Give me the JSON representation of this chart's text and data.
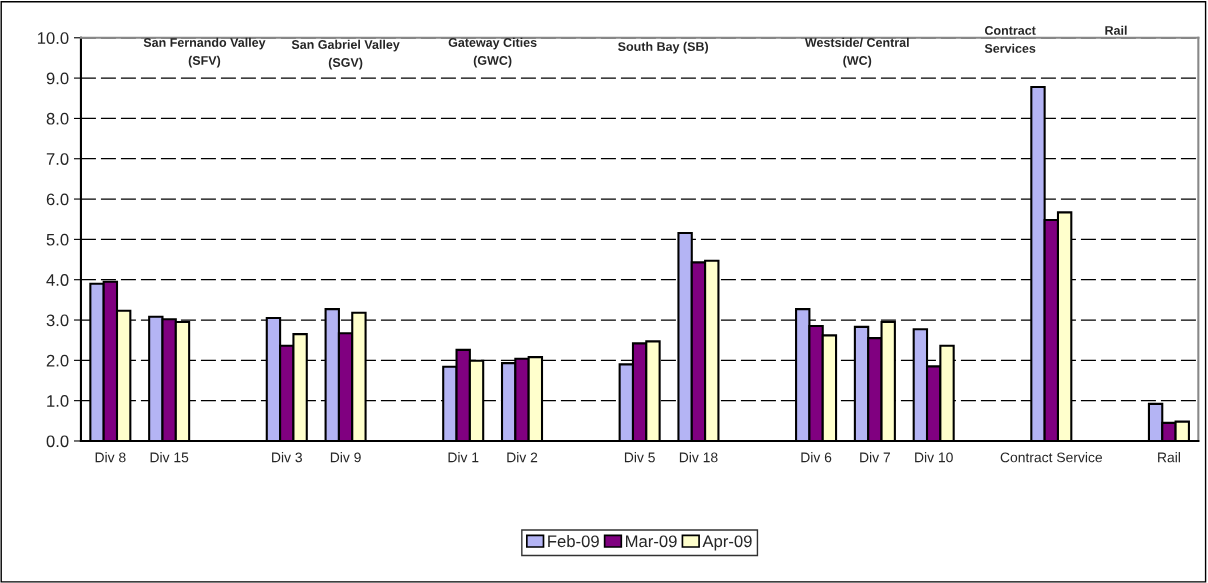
{
  "chart_data": {
    "type": "bar",
    "categories": [
      "Div 8",
      "Div 15",
      null,
      "Div 3",
      "Div 9",
      null,
      "Div 1",
      "Div 2",
      null,
      "Div 5",
      "Div 18",
      null,
      "Div 6",
      "Div 7",
      "Div 10",
      null,
      "Contract Service",
      null,
      "Rail"
    ],
    "series": [
      {
        "name": "Feb-09",
        "color": "#b4b4f4",
        "values": [
          3.9,
          3.08,
          null,
          3.05,
          3.27,
          null,
          1.84,
          1.93,
          null,
          1.9,
          5.16,
          null,
          3.27,
          2.83,
          2.77,
          null,
          8.78,
          null,
          0.92
        ]
      },
      {
        "name": "Mar-09",
        "color": "#800080",
        "values": [
          3.95,
          3.02,
          null,
          2.36,
          2.67,
          null,
          2.26,
          2.04,
          null,
          2.42,
          4.43,
          null,
          2.85,
          2.55,
          1.85,
          null,
          5.48,
          null,
          0.45
        ]
      },
      {
        "name": "Apr-09",
        "color": "#ffffcc",
        "values": [
          3.23,
          2.95,
          null,
          2.65,
          3.18,
          null,
          1.99,
          2.08,
          null,
          2.47,
          4.47,
          null,
          2.62,
          2.95,
          2.36,
          null,
          5.67,
          null,
          0.48
        ]
      }
    ],
    "ylim": [
      0,
      10
    ],
    "yticks": [
      {
        "value": 0,
        "label": "0.0"
      },
      {
        "value": 1,
        "label": "1.0"
      },
      {
        "value": 2,
        "label": "2.0"
      },
      {
        "value": 3,
        "label": "3.0"
      },
      {
        "value": 4,
        "label": "4.0"
      },
      {
        "value": 5,
        "label": "5.0"
      },
      {
        "value": 6,
        "label": "6.0"
      },
      {
        "value": 7,
        "label": "7.0"
      },
      {
        "value": 8,
        "label": "8.0"
      },
      {
        "value": 9,
        "label": "9.0"
      },
      {
        "value": 10,
        "label": "10.0"
      }
    ],
    "grid": "y",
    "legend": "bottom",
    "annotations": [
      "San Fernando Valley\n(SFV)",
      "San Gabriel Valley\n(SGV)",
      "Gateway Cities\n(GWC)",
      "South Bay (SB)",
      "Westside/ Central\n(WC)",
      "Contract\nServices",
      "Rail"
    ]
  }
}
